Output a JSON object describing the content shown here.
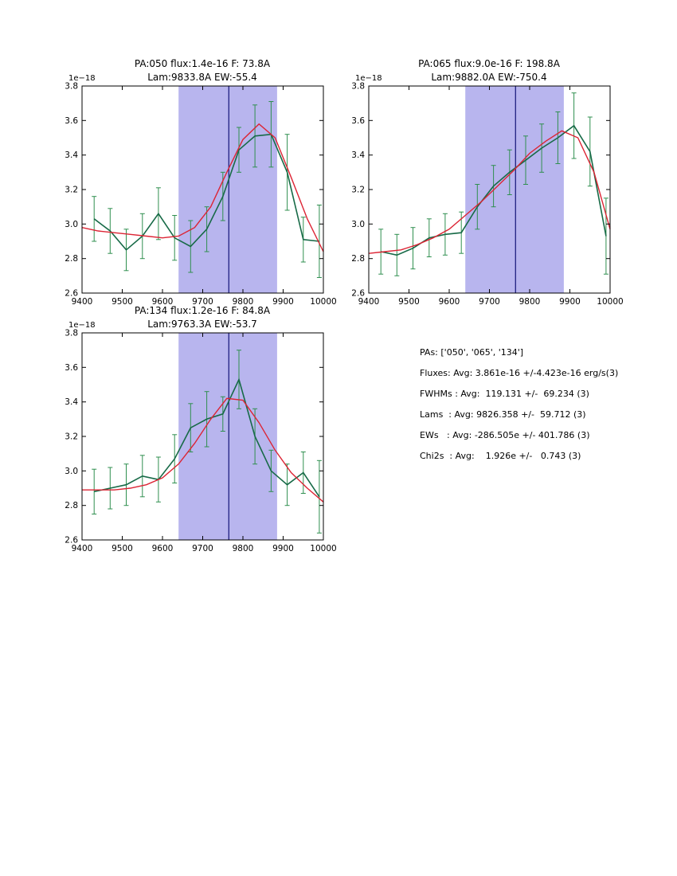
{
  "colors": {
    "data_line": "#176a47",
    "error_bar": "#2f8f4f",
    "fit_line": "#dc2434",
    "band": "#b8b5ee",
    "vline": "#202080",
    "axis": "#000000"
  },
  "summary": {
    "lines": [
      "PAs: ['050', '065', '134']",
      "Fluxes: Avg: 3.861e-16 +/-4.423e-16 erg/s(3)",
      "FWHMs : Avg:  119.131 +/-  69.234 (3)",
      "Lams  : Avg: 9826.358 +/-  59.712 (3)",
      "EWs   : Avg: -286.505e +/- 401.786 (3)",
      "Chi2s  : Avg:    1.926e +/-   0.743 (3)"
    ]
  },
  "chart_data": [
    {
      "type": "line",
      "title_line1": "PA:050 flux:1.4e-16 F: 73.8A",
      "title_line2": "Lam:9833.8A EW:-55.4",
      "offset": "1e−18",
      "xlim": [
        9400,
        10000
      ],
      "ylim": [
        2.6,
        3.8
      ],
      "x_ticks": {
        "values": [
          9400,
          9500,
          9600,
          9700,
          9800,
          9900,
          10000
        ],
        "labels": [
          "9400",
          "9500",
          "9600",
          "9700",
          "9800",
          "9900",
          "10000"
        ]
      },
      "y_ticks": {
        "values": [
          2.6,
          2.8,
          3.0,
          3.2,
          3.4,
          3.6,
          3.8
        ],
        "labels": [
          "2.6",
          "2.8",
          "3.0",
          "3.2",
          "3.4",
          "3.6",
          "3.8"
        ]
      },
      "band": [
        9640,
        9885
      ],
      "vline": 9765,
      "series": [
        {
          "name": "data",
          "x": [
            9430,
            9470,
            9510,
            9550,
            9590,
            9630,
            9670,
            9710,
            9750,
            9790,
            9830,
            9870,
            9910,
            9950,
            9990
          ],
          "y": [
            3.03,
            2.96,
            2.85,
            2.93,
            3.06,
            2.92,
            2.87,
            2.97,
            3.16,
            3.43,
            3.51,
            3.52,
            3.3,
            2.91,
            2.9
          ],
          "yerr": [
            0.13,
            0.13,
            0.12,
            0.13,
            0.15,
            0.13,
            0.15,
            0.13,
            0.14,
            0.13,
            0.18,
            0.19,
            0.22,
            0.13,
            0.21
          ]
        },
        {
          "name": "fit",
          "x": [
            9400,
            9440,
            9480,
            9520,
            9560,
            9600,
            9640,
            9680,
            9720,
            9760,
            9800,
            9840,
            9880,
            9920,
            9960,
            10000
          ],
          "y": [
            2.98,
            2.96,
            2.95,
            2.94,
            2.93,
            2.92,
            2.93,
            2.98,
            3.1,
            3.3,
            3.49,
            3.58,
            3.5,
            3.27,
            3.03,
            2.84
          ]
        }
      ]
    },
    {
      "type": "line",
      "title_line1": "PA:065 flux:9.0e-16 F: 198.8A",
      "title_line2": "Lam:9882.0A EW:-750.4",
      "offset": "1e−18",
      "xlim": [
        9400,
        10000
      ],
      "ylim": [
        2.6,
        3.8
      ],
      "x_ticks": {
        "values": [
          9400,
          9500,
          9600,
          9700,
          9800,
          9900,
          10000
        ],
        "labels": [
          "9400",
          "9500",
          "9600",
          "9700",
          "9800",
          "9900",
          "10000"
        ]
      },
      "y_ticks": {
        "values": [
          2.6,
          2.8,
          3.0,
          3.2,
          3.4,
          3.6,
          3.8
        ],
        "labels": [
          "2.6",
          "2.8",
          "3.0",
          "3.2",
          "3.4",
          "3.6",
          "3.8"
        ]
      },
      "band": [
        9640,
        9885
      ],
      "vline": 9765,
      "series": [
        {
          "name": "data",
          "x": [
            9430,
            9470,
            9510,
            9550,
            9590,
            9630,
            9670,
            9710,
            9750,
            9790,
            9830,
            9870,
            9910,
            9950,
            9990
          ],
          "y": [
            2.84,
            2.82,
            2.86,
            2.92,
            2.94,
            2.95,
            3.1,
            3.22,
            3.3,
            3.37,
            3.44,
            3.5,
            3.57,
            3.42,
            2.93
          ],
          "yerr": [
            0.13,
            0.12,
            0.12,
            0.11,
            0.12,
            0.12,
            0.13,
            0.12,
            0.13,
            0.14,
            0.14,
            0.15,
            0.19,
            0.2,
            0.22
          ]
        },
        {
          "name": "fit",
          "x": [
            9400,
            9440,
            9480,
            9520,
            9560,
            9600,
            9640,
            9680,
            9720,
            9760,
            9800,
            9840,
            9880,
            9920,
            9960,
            10000
          ],
          "y": [
            2.83,
            2.84,
            2.85,
            2.88,
            2.92,
            2.97,
            3.05,
            3.13,
            3.22,
            3.31,
            3.41,
            3.48,
            3.54,
            3.5,
            3.3,
            2.97
          ]
        }
      ]
    },
    {
      "type": "line",
      "title_line1": "PA:134 flux:1.2e-16 F: 84.8A",
      "title_line2": "Lam:9763.3A EW:-53.7",
      "offset": "1e−18",
      "xlim": [
        9400,
        10000
      ],
      "ylim": [
        2.6,
        3.8
      ],
      "x_ticks": {
        "values": [
          9400,
          9500,
          9600,
          9700,
          9800,
          9900,
          10000
        ],
        "labels": [
          "9400",
          "9500",
          "9600",
          "9700",
          "9800",
          "9900",
          "10000"
        ]
      },
      "y_ticks": {
        "values": [
          2.6,
          2.8,
          3.0,
          3.2,
          3.4,
          3.6,
          3.8
        ],
        "labels": [
          "2.6",
          "2.8",
          "3.0",
          "3.2",
          "3.4",
          "3.6",
          "3.8"
        ]
      },
      "band": [
        9640,
        9885
      ],
      "vline": 9765,
      "series": [
        {
          "name": "data",
          "x": [
            9430,
            9470,
            9510,
            9550,
            9590,
            9630,
            9670,
            9710,
            9750,
            9790,
            9830,
            9870,
            9910,
            9950,
            9990
          ],
          "y": [
            2.88,
            2.9,
            2.92,
            2.97,
            2.95,
            3.07,
            3.25,
            3.3,
            3.33,
            3.53,
            3.2,
            3.0,
            2.92,
            2.99,
            2.85
          ],
          "yerr": [
            0.13,
            0.12,
            0.12,
            0.12,
            0.13,
            0.14,
            0.14,
            0.16,
            0.1,
            0.17,
            0.16,
            0.12,
            0.12,
            0.12,
            0.21
          ]
        },
        {
          "name": "fit",
          "x": [
            9400,
            9440,
            9480,
            9520,
            9560,
            9600,
            9640,
            9680,
            9720,
            9760,
            9800,
            9840,
            9880,
            9920,
            9960,
            10000
          ],
          "y": [
            2.89,
            2.89,
            2.89,
            2.9,
            2.92,
            2.96,
            3.04,
            3.16,
            3.3,
            3.42,
            3.41,
            3.28,
            3.12,
            2.99,
            2.9,
            2.82
          ]
        }
      ]
    }
  ]
}
